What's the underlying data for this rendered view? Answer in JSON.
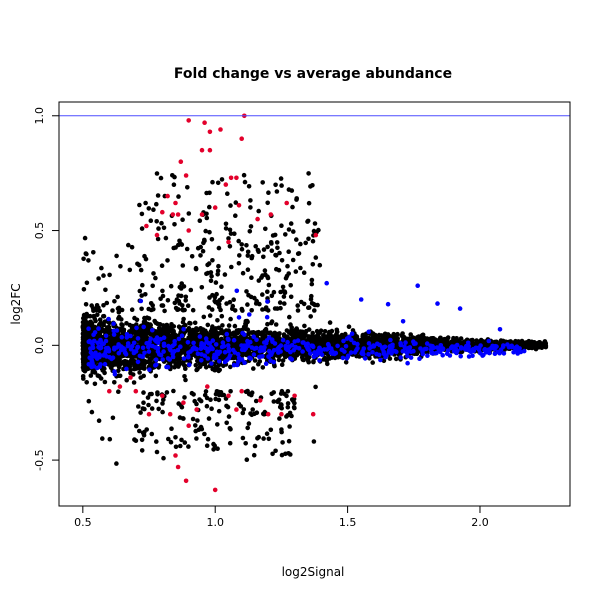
{
  "chart_data": {
    "type": "scatter",
    "title": "Fold change vs average abundance",
    "xlabel": "log2Signal",
    "ylabel": "log2FC",
    "xlim": [
      0.41,
      2.34
    ],
    "ylim": [
      -0.7,
      1.06
    ],
    "x_ticks": [
      "0.5",
      "1.0",
      "1.5",
      "2.0"
    ],
    "y_ticks": [
      "-0.5",
      "0.0",
      "0.5",
      "1.0"
    ],
    "reference_line": {
      "y": 1.0,
      "color": "#4d4dff"
    },
    "grid": false,
    "legend": "none",
    "colors": {
      "all": "#000000",
      "highlight": "#0000ff",
      "significant": "#e3002b"
    },
    "series": [
      {
        "color": "#e3002b",
        "points": [
          [
            0.9,
            0.98
          ],
          [
            0.96,
            0.97
          ],
          [
            0.98,
            0.93
          ],
          [
            1.02,
            0.94
          ],
          [
            1.11,
            1.0
          ],
          [
            1.1,
            0.9
          ],
          [
            0.95,
            0.85
          ],
          [
            0.98,
            0.85
          ],
          [
            0.87,
            0.8
          ],
          [
            0.89,
            0.74
          ],
          [
            1.06,
            0.73
          ],
          [
            1.04,
            0.7
          ],
          [
            1.08,
            0.73
          ],
          [
            0.82,
            0.65
          ],
          [
            0.85,
            0.62
          ],
          [
            0.8,
            0.58
          ],
          [
            0.84,
            0.57
          ],
          [
            0.86,
            0.57
          ],
          [
            0.95,
            0.57
          ],
          [
            1.0,
            0.6
          ],
          [
            1.09,
            0.61
          ],
          [
            1.16,
            0.55
          ],
          [
            1.21,
            0.57
          ],
          [
            1.27,
            0.62
          ],
          [
            0.74,
            0.52
          ],
          [
            0.78,
            0.48
          ],
          [
            0.9,
            0.5
          ],
          [
            1.05,
            0.45
          ],
          [
            1.38,
            0.48
          ],
          [
            0.6,
            -0.2
          ],
          [
            0.7,
            -0.2
          ],
          [
            0.8,
            -0.22
          ],
          [
            0.88,
            -0.25
          ],
          [
            0.97,
            -0.18
          ],
          [
            1.05,
            -0.22
          ],
          [
            1.1,
            -0.2
          ],
          [
            1.17,
            -0.24
          ],
          [
            1.2,
            -0.3
          ],
          [
            1.3,
            -0.22
          ],
          [
            0.75,
            -0.3
          ],
          [
            0.83,
            -0.3
          ],
          [
            0.9,
            -0.35
          ],
          [
            1.25,
            -0.3
          ],
          [
            1.37,
            -0.3
          ],
          [
            0.85,
            -0.48
          ],
          [
            0.86,
            -0.53
          ],
          [
            0.89,
            -0.59
          ],
          [
            1.0,
            -0.63
          ],
          [
            0.64,
            -0.18
          ],
          [
            1.08,
            -0.28
          ],
          [
            0.93,
            -0.28
          ],
          [
            0.68,
            -0.14
          ]
        ]
      }
    ]
  }
}
